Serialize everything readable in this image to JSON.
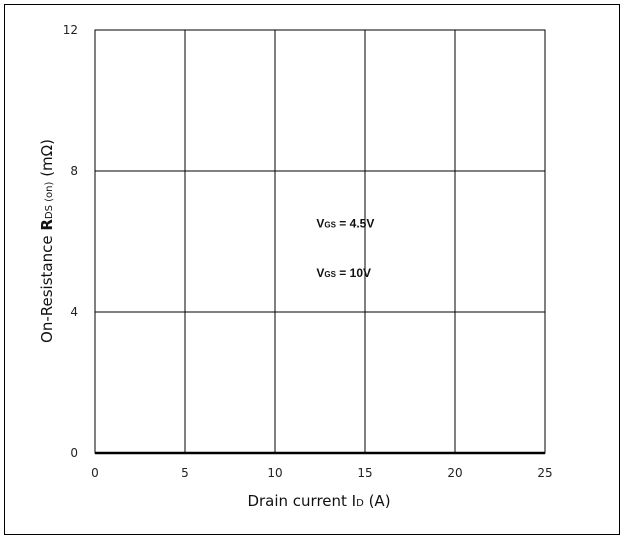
{
  "chart_data": {
    "type": "line",
    "title": "",
    "xlabel": "Drain current I_D (A)",
    "xlabel_parts": {
      "pre": "Drain current ",
      "sym": "I",
      "sub": "D",
      "post": " (A)"
    },
    "ylabel": "On-Resistance R_DS(on) (mΩ)",
    "ylabel_parts": {
      "pre": "On-Resistance ",
      "sym": "R",
      "sub": "DS (on)",
      "post": " (mΩ)"
    },
    "xlim": [
      0,
      25
    ],
    "ylim": [
      0,
      12
    ],
    "x_ticks": [
      0,
      5,
      10,
      15,
      20,
      25
    ],
    "y_ticks": [
      0,
      4,
      8,
      12
    ],
    "grid": true,
    "series": [],
    "annotations": [
      {
        "sym": "V",
        "sub": "GS",
        "text": " = 4.5V",
        "x": 12.3,
        "y": 6.4
      },
      {
        "sym": "V",
        "sub": "GS",
        "text": " = 10V",
        "x": 12.3,
        "y": 5.0
      }
    ]
  }
}
